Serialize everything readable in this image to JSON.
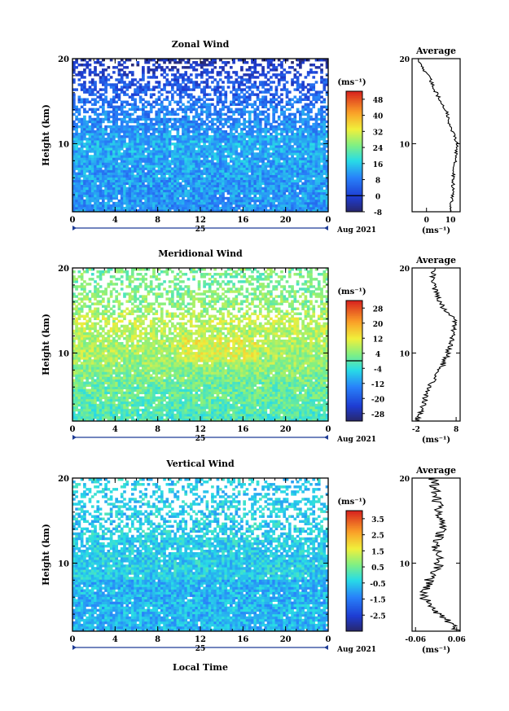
{
  "figure": {
    "xlabel": "Local Time",
    "date_label": "Aug 2021",
    "day_label": "25"
  },
  "chart_data": [
    {
      "type": "heatmap",
      "title": "Zonal Wind",
      "ylabel": "Height (km)",
      "x_ticks": [
        "0",
        "4",
        "8",
        "12",
        "16",
        "20",
        "0"
      ],
      "y_ticks": [
        "10",
        "20"
      ],
      "xlim": [
        0,
        24
      ],
      "ylim": [
        2,
        20
      ],
      "colorbar": {
        "unit": "(ms⁻¹)",
        "ticks": [
          "-8",
          "0",
          "8",
          "16",
          "24",
          "32",
          "40",
          "48"
        ],
        "range": [
          -8,
          52
        ],
        "zero_line": 0
      },
      "profile_estimate": [
        [
          2,
          10
        ],
        [
          4,
          11
        ],
        [
          6,
          11
        ],
        [
          8,
          12
        ],
        [
          10,
          13
        ],
        [
          12,
          10
        ],
        [
          14,
          8
        ],
        [
          16,
          4
        ],
        [
          18,
          1
        ],
        [
          19,
          -2
        ],
        [
          20,
          -4
        ]
      ]
    },
    {
      "type": "heatmap",
      "title": "Meridional Wind",
      "ylabel": "Height (km)",
      "x_ticks": [
        "0",
        "4",
        "8",
        "12",
        "16",
        "20",
        "0"
      ],
      "y_ticks": [
        "10",
        "20"
      ],
      "xlim": [
        0,
        24
      ],
      "ylim": [
        2,
        20
      ],
      "colorbar": {
        "unit": "(ms⁻¹)",
        "ticks": [
          "-28",
          "-20",
          "-12",
          "-4",
          "4",
          "12",
          "20",
          "28"
        ],
        "range": [
          -32,
          32
        ],
        "zero_line": 0
      },
      "profile_estimate": [
        [
          2,
          -2
        ],
        [
          4,
          0
        ],
        [
          6,
          1
        ],
        [
          8,
          4
        ],
        [
          10,
          6
        ],
        [
          12,
          7
        ],
        [
          14,
          8
        ],
        [
          15,
          5
        ],
        [
          17,
          3
        ],
        [
          19,
          2
        ],
        [
          20,
          3
        ]
      ]
    },
    {
      "type": "heatmap",
      "title": "Vertical Wind",
      "ylabel": "Height (km)",
      "x_ticks": [
        "0",
        "4",
        "8",
        "12",
        "16",
        "20",
        "0"
      ],
      "y_ticks": [
        "10",
        "20"
      ],
      "xlim": [
        0,
        24
      ],
      "ylim": [
        2,
        20
      ],
      "colorbar": {
        "unit": "(ms⁻¹)",
        "ticks": [
          "-2.5",
          "-1.5",
          "-0.5",
          "0.5",
          "1.5",
          "2.5",
          "3.5"
        ],
        "range": [
          -3.5,
          4
        ],
        "zero_line": null
      },
      "profile_estimate": [
        [
          2,
          0.06
        ],
        [
          3,
          0.04
        ],
        [
          4,
          0.01
        ],
        [
          6,
          -0.04
        ],
        [
          8,
          -0.02
        ],
        [
          10,
          0.01
        ],
        [
          12,
          0.0
        ],
        [
          14,
          0.02
        ],
        [
          16,
          0.01
        ],
        [
          18,
          0.0
        ],
        [
          20,
          -0.01
        ]
      ]
    }
  ],
  "averages": [
    {
      "title": "Average",
      "x_ticks": [
        "0",
        "10"
      ],
      "xlim": [
        -6,
        14
      ],
      "unit": "(ms⁻¹)",
      "y_ticks": [
        "10",
        "20"
      ]
    },
    {
      "title": "Average",
      "x_ticks": [
        "-2",
        "8"
      ],
      "xlim": [
        -3,
        9
      ],
      "unit": "(ms⁻¹)",
      "y_ticks": [
        "10",
        "20"
      ]
    },
    {
      "title": "Average",
      "x_ticks": [
        "-0.06",
        "0.06"
      ],
      "xlim": [
        -0.07,
        0.07
      ],
      "unit": "(ms⁻¹)",
      "y_ticks": [
        "10",
        "20"
      ]
    }
  ]
}
